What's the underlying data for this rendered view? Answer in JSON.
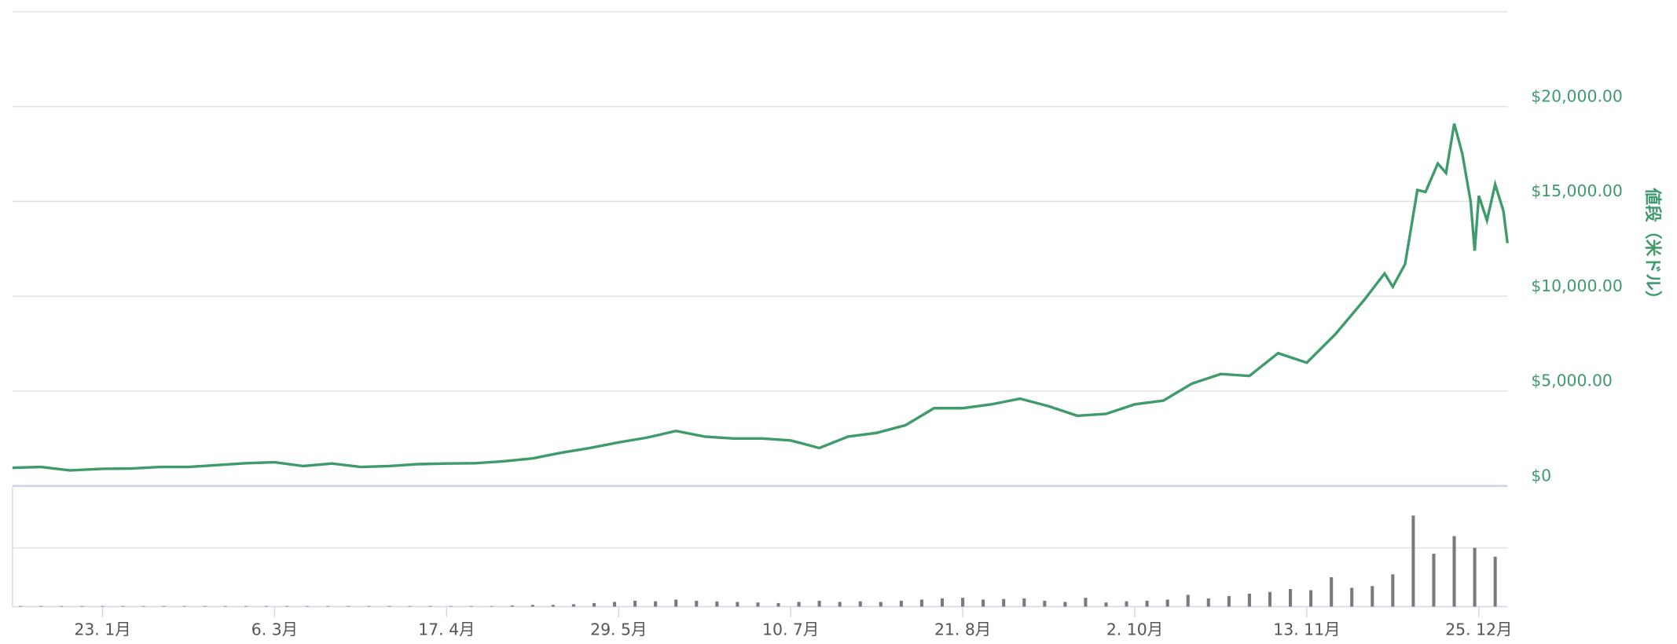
{
  "chart_data": [
    {
      "type": "line",
      "y_label": "値段（米ドル）",
      "grid": true,
      "xlim": [
        1,
        366
      ],
      "ylim": [
        0,
        25000
      ],
      "yticks": [
        {
          "value": 0,
          "label": "$0"
        },
        {
          "value": 5000,
          "label": "$5,000.00"
        },
        {
          "value": 10000,
          "label": "$10,000.00"
        },
        {
          "value": 15000,
          "label": "$15,000.00"
        },
        {
          "value": 20000,
          "label": "$20,000.00"
        }
      ],
      "series": [
        {
          "name": "値段",
          "color": "#3f9a6c",
          "x": [
            1,
            8,
            15,
            23,
            30,
            37,
            44,
            51,
            58,
            65,
            72,
            79,
            86,
            93,
            100,
            107,
            114,
            121,
            128,
            135,
            142,
            149,
            156,
            163,
            170,
            177,
            184,
            191,
            198,
            205,
            212,
            219,
            226,
            233,
            240,
            247,
            254,
            261,
            268,
            275,
            282,
            289,
            296,
            303,
            310,
            317,
            324,
            331,
            336,
            338,
            341,
            344,
            346,
            349,
            351,
            353,
            355,
            357,
            358,
            359,
            361,
            363,
            365,
            366
          ],
          "values": [
            960,
            1000,
            820,
            900,
            920,
            1000,
            1000,
            1100,
            1200,
            1250,
            1050,
            1180,
            1000,
            1050,
            1150,
            1180,
            1200,
            1300,
            1450,
            1750,
            2000,
            2300,
            2550,
            2900,
            2600,
            2500,
            2500,
            2400,
            2000,
            2600,
            2800,
            3200,
            4100,
            4100,
            4300,
            4600,
            4200,
            3700,
            3800,
            4300,
            4500,
            5400,
            5900,
            5800,
            7000,
            6500,
            8000,
            9800,
            11200,
            10500,
            11700,
            15600,
            15500,
            17000,
            16500,
            19100,
            17500,
            15000,
            12400,
            15300,
            14000,
            15900,
            14500,
            12800
          ]
        }
      ]
    },
    {
      "type": "bar",
      "color": "#7a7a7a",
      "grid": true,
      "xlim": [
        1,
        366
      ],
      "ylim": [
        0,
        2
      ],
      "yticks": [
        1
      ],
      "xticks": [
        {
          "value": 23,
          "label": "23. 1月"
        },
        {
          "value": 65,
          "label": "6. 3月"
        },
        {
          "value": 107,
          "label": "17. 4月"
        },
        {
          "value": 149,
          "label": "29. 5月"
        },
        {
          "value": 191,
          "label": "10. 7月"
        },
        {
          "value": 233,
          "label": "21. 8月"
        },
        {
          "value": 275,
          "label": "2. 10月"
        },
        {
          "value": 317,
          "label": "13. 11月"
        },
        {
          "value": 359,
          "label": "25. 12月"
        }
      ],
      "x": [
        3,
        8,
        13,
        18,
        23,
        28,
        33,
        38,
        43,
        48,
        53,
        58,
        63,
        68,
        73,
        78,
        83,
        88,
        93,
        98,
        103,
        108,
        113,
        118,
        123,
        128,
        133,
        138,
        143,
        148,
        153,
        158,
        163,
        168,
        173,
        178,
        183,
        188,
        193,
        198,
        203,
        208,
        213,
        218,
        223,
        228,
        233,
        238,
        243,
        248,
        253,
        258,
        263,
        268,
        273,
        278,
        283,
        288,
        293,
        298,
        303,
        308,
        313,
        318,
        323,
        328,
        333,
        338,
        343,
        348,
        353,
        358,
        363
      ],
      "values": [
        0.01,
        0.01,
        0.01,
        0.01,
        0.01,
        0.01,
        0.01,
        0.01,
        0.01,
        0.01,
        0.01,
        0.01,
        0.01,
        0.01,
        0.01,
        0.01,
        0.01,
        0.01,
        0.01,
        0.01,
        0.01,
        0.01,
        0.01,
        0.01,
        0.02,
        0.03,
        0.03,
        0.04,
        0.06,
        0.08,
        0.1,
        0.09,
        0.12,
        0.1,
        0.09,
        0.08,
        0.07,
        0.06,
        0.08,
        0.1,
        0.08,
        0.09,
        0.08,
        0.1,
        0.12,
        0.14,
        0.15,
        0.12,
        0.13,
        0.14,
        0.1,
        0.08,
        0.15,
        0.07,
        0.09,
        0.1,
        0.12,
        0.2,
        0.14,
        0.18,
        0.22,
        0.25,
        0.3,
        0.28,
        0.5,
        0.32,
        0.35,
        0.55,
        1.55,
        0.9,
        1.2,
        1.0,
        0.85
      ]
    }
  ]
}
